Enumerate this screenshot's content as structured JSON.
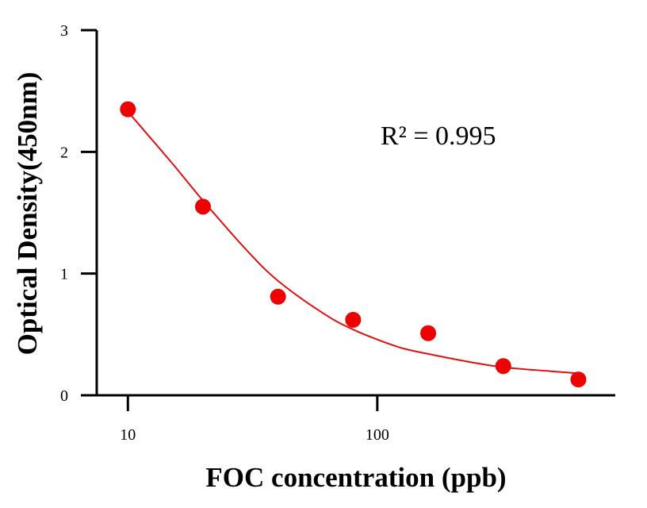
{
  "chart_data": {
    "type": "scatter",
    "xlabel": "FOC concentration (ppb)",
    "ylabel": "Optical Density(450nm)",
    "xscale": "log",
    "xlim": [
      7.5,
      900
    ],
    "ylim": [
      0,
      3
    ],
    "xticks": [
      10,
      100
    ],
    "xtick_labels": [
      "10",
      "100"
    ],
    "yticks": [
      0,
      1,
      2,
      3
    ],
    "ytick_labels": [
      "0",
      "1",
      "2",
      "3"
    ],
    "grid": false,
    "legend": "none",
    "annotation": "R² = 0.995",
    "colors": {
      "points": "#ee0000",
      "fit_line": "#dd1111",
      "axes": "#000000"
    },
    "series": [
      {
        "kind": "points",
        "x": [
          10,
          20,
          40,
          80,
          160,
          320,
          640
        ],
        "y": [
          2.35,
          1.55,
          0.81,
          0.62,
          0.51,
          0.24,
          0.13
        ]
      },
      {
        "kind": "fit-line",
        "x": [
          10,
          15,
          20,
          30,
          40,
          60,
          80,
          120,
          160,
          240,
          320,
          480,
          640
        ],
        "y": [
          2.33,
          1.91,
          1.6,
          1.19,
          0.94,
          0.68,
          0.54,
          0.4,
          0.34,
          0.27,
          0.23,
          0.2,
          0.18
        ]
      }
    ]
  }
}
